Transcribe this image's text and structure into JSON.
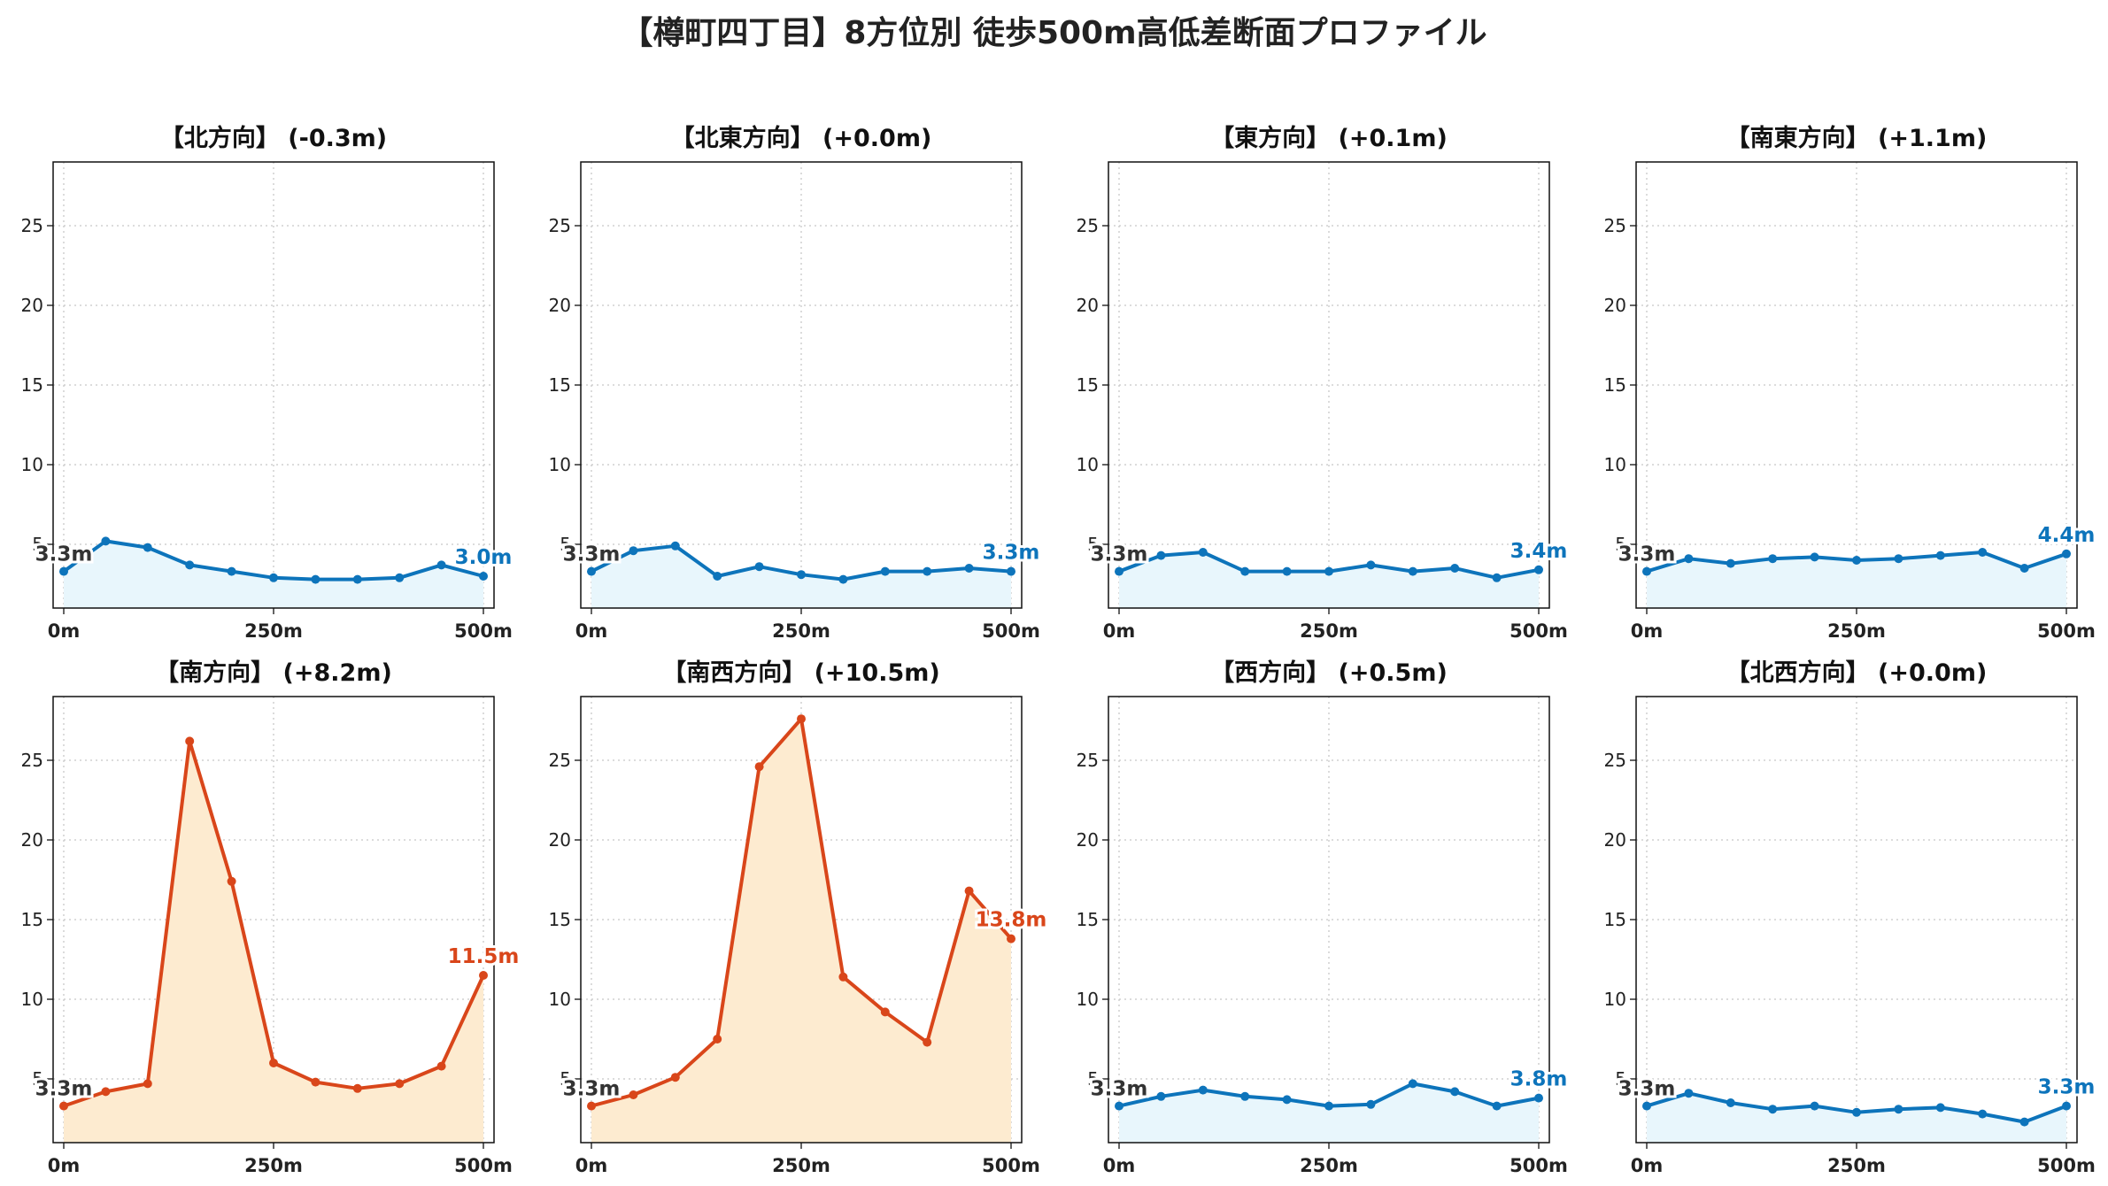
{
  "title": "【樽町四丁目】8方位別 徒歩500m高低差断面プロファイル",
  "colors": {
    "up_line": "#d9461a",
    "up_fill": "#fdebd0",
    "flat_line": "#0d74bb",
    "flat_fill": "#e8f6fc",
    "start_label": "#333333",
    "grid": "#c8c8c8"
  },
  "chart_data": [
    {
      "type": "area",
      "title": "【北方向】 (-0.3m)",
      "trend": "flat",
      "x": [
        0,
        50,
        100,
        150,
        200,
        250,
        300,
        350,
        400,
        450,
        500
      ],
      "y": [
        3.3,
        5.2,
        4.8,
        3.7,
        3.3,
        2.9,
        2.8,
        2.8,
        2.9,
        3.7,
        3.0
      ],
      "start_label": "3.3m",
      "end_label": "3.0m",
      "xticks": [
        "0m",
        "250m",
        "500m"
      ],
      "yticks": [
        "5",
        "10",
        "15",
        "20",
        "25"
      ],
      "xlim": [
        0,
        500
      ],
      "ylim": [
        1,
        29
      ],
      "grid": true
    },
    {
      "type": "area",
      "title": "【北東方向】 (+0.0m)",
      "trend": "flat",
      "x": [
        0,
        50,
        100,
        150,
        200,
        250,
        300,
        350,
        400,
        450,
        500
      ],
      "y": [
        3.3,
        4.6,
        4.9,
        3.0,
        3.6,
        3.1,
        2.8,
        3.3,
        3.3,
        3.5,
        3.3
      ],
      "start_label": "3.3m",
      "end_label": "3.3m",
      "xticks": [
        "0m",
        "250m",
        "500m"
      ],
      "yticks": [
        "5",
        "10",
        "15",
        "20",
        "25"
      ],
      "xlim": [
        0,
        500
      ],
      "ylim": [
        1,
        29
      ],
      "grid": true
    },
    {
      "type": "area",
      "title": "【東方向】 (+0.1m)",
      "trend": "flat",
      "x": [
        0,
        50,
        100,
        150,
        200,
        250,
        300,
        350,
        400,
        450,
        500
      ],
      "y": [
        3.3,
        4.3,
        4.5,
        3.3,
        3.3,
        3.3,
        3.7,
        3.3,
        3.5,
        2.9,
        3.4
      ],
      "start_label": "3.3m",
      "end_label": "3.4m",
      "xticks": [
        "0m",
        "250m",
        "500m"
      ],
      "yticks": [
        "5",
        "10",
        "15",
        "20",
        "25"
      ],
      "xlim": [
        0,
        500
      ],
      "ylim": [
        1,
        29
      ],
      "grid": true
    },
    {
      "type": "area",
      "title": "【南東方向】 (+1.1m)",
      "trend": "flat",
      "x": [
        0,
        50,
        100,
        150,
        200,
        250,
        300,
        350,
        400,
        450,
        500
      ],
      "y": [
        3.3,
        4.1,
        3.8,
        4.1,
        4.2,
        4.0,
        4.1,
        4.3,
        4.5,
        3.5,
        4.4
      ],
      "start_label": "3.3m",
      "end_label": "4.4m",
      "xticks": [
        "0m",
        "250m",
        "500m"
      ],
      "yticks": [
        "5",
        "10",
        "15",
        "20",
        "25"
      ],
      "xlim": [
        0,
        500
      ],
      "ylim": [
        1,
        29
      ],
      "grid": true
    },
    {
      "type": "area",
      "title": "【南方向】 (+8.2m)",
      "trend": "up",
      "x": [
        0,
        50,
        100,
        150,
        200,
        250,
        300,
        350,
        400,
        450,
        500
      ],
      "y": [
        3.3,
        4.2,
        4.7,
        26.2,
        17.4,
        6.0,
        4.8,
        4.4,
        4.7,
        5.8,
        11.5
      ],
      "start_label": "3.3m",
      "end_label": "11.5m",
      "xticks": [
        "0m",
        "250m",
        "500m"
      ],
      "yticks": [
        "5",
        "10",
        "15",
        "20",
        "25"
      ],
      "xlim": [
        0,
        500
      ],
      "ylim": [
        1,
        29
      ],
      "grid": true
    },
    {
      "type": "area",
      "title": "【南西方向】 (+10.5m)",
      "trend": "up",
      "x": [
        0,
        50,
        100,
        150,
        200,
        250,
        300,
        350,
        400,
        450,
        500
      ],
      "y": [
        3.3,
        4.0,
        5.1,
        7.5,
        24.6,
        27.6,
        11.4,
        9.2,
        7.3,
        16.8,
        13.8
      ],
      "start_label": "3.3m",
      "end_label": "13.8m",
      "xticks": [
        "0m",
        "250m",
        "500m"
      ],
      "yticks": [
        "5",
        "10",
        "15",
        "20",
        "25"
      ],
      "xlim": [
        0,
        500
      ],
      "ylim": [
        1,
        29
      ],
      "grid": true
    },
    {
      "type": "area",
      "title": "【西方向】 (+0.5m)",
      "trend": "flat",
      "x": [
        0,
        50,
        100,
        150,
        200,
        250,
        300,
        350,
        400,
        450,
        500
      ],
      "y": [
        3.3,
        3.9,
        4.3,
        3.9,
        3.7,
        3.3,
        3.4,
        4.7,
        4.2,
        3.3,
        3.8
      ],
      "start_label": "3.3m",
      "end_label": "3.8m",
      "xticks": [
        "0m",
        "250m",
        "500m"
      ],
      "yticks": [
        "5",
        "10",
        "15",
        "20",
        "25"
      ],
      "xlim": [
        0,
        500
      ],
      "ylim": [
        1,
        29
      ],
      "grid": true
    },
    {
      "type": "area",
      "title": "【北西方向】 (+0.0m)",
      "trend": "flat",
      "x": [
        0,
        50,
        100,
        150,
        200,
        250,
        300,
        350,
        400,
        450,
        500
      ],
      "y": [
        3.3,
        4.1,
        3.5,
        3.1,
        3.3,
        2.9,
        3.1,
        3.2,
        2.8,
        2.3,
        3.3
      ],
      "start_label": "3.3m",
      "end_label": "3.3m",
      "xticks": [
        "0m",
        "250m",
        "500m"
      ],
      "yticks": [
        "5",
        "10",
        "15",
        "20",
        "25"
      ],
      "xlim": [
        0,
        500
      ],
      "ylim": [
        1,
        29
      ],
      "grid": true
    }
  ]
}
